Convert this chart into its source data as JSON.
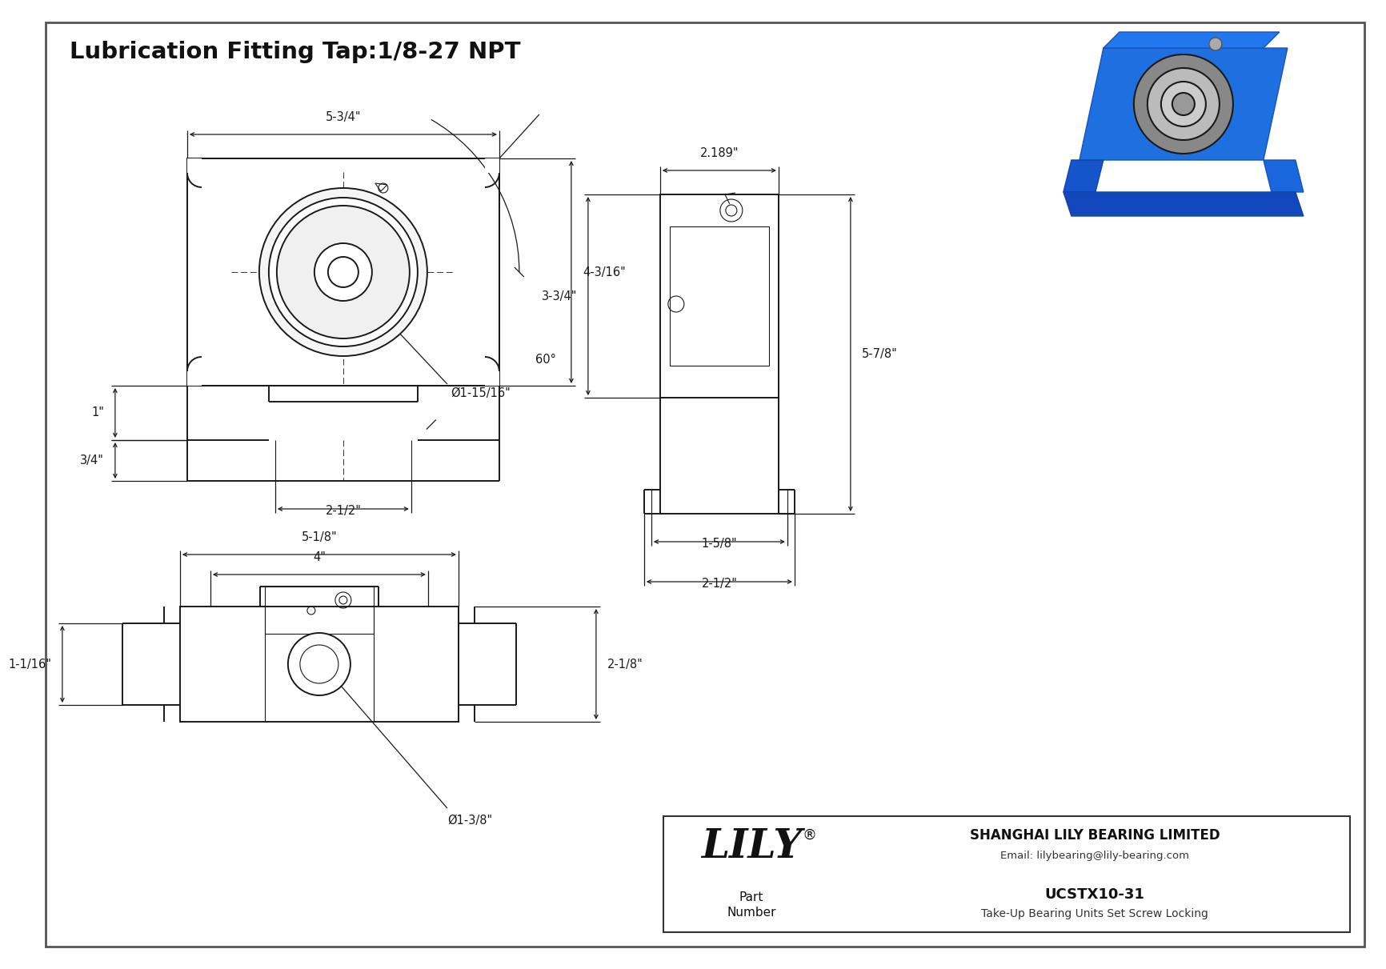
{
  "title": "Lubrication Fitting Tap:1/8-27 NPT",
  "bg_color": "#ffffff",
  "line_color": "#1a1a1a",
  "part_number": "UCSTX10-31",
  "part_desc": "Take-Up Bearing Units Set Screw Locking",
  "company": "SHANGHAI LILY BEARING LIMITED",
  "email": "Email: lilybearing@lily-bearing.com",
  "lily_text": "LILY",
  "registered": "®",
  "dims": {
    "front_width": "5-3/4\"",
    "front_height_left": "1\"",
    "front_height_right": "4-3/16\"",
    "front_slot_width": "2-1/2\"",
    "front_bore": "Ø1-15/16\"",
    "front_angle": "60°",
    "front_slot_height": "3/4\"",
    "side_width": "2.189\"",
    "side_height_left": "3-3/4\"",
    "side_height_right": "5-7/8\"",
    "side_slot_width1": "1-5/8\"",
    "side_slot_width2": "2-1/2\"",
    "bot_width1": "5-1/8\"",
    "bot_width2": "4\"",
    "bot_height": "2-1/8\"",
    "bot_slot": "1-1/16\"",
    "bot_bore": "Ø1-3/8\""
  }
}
